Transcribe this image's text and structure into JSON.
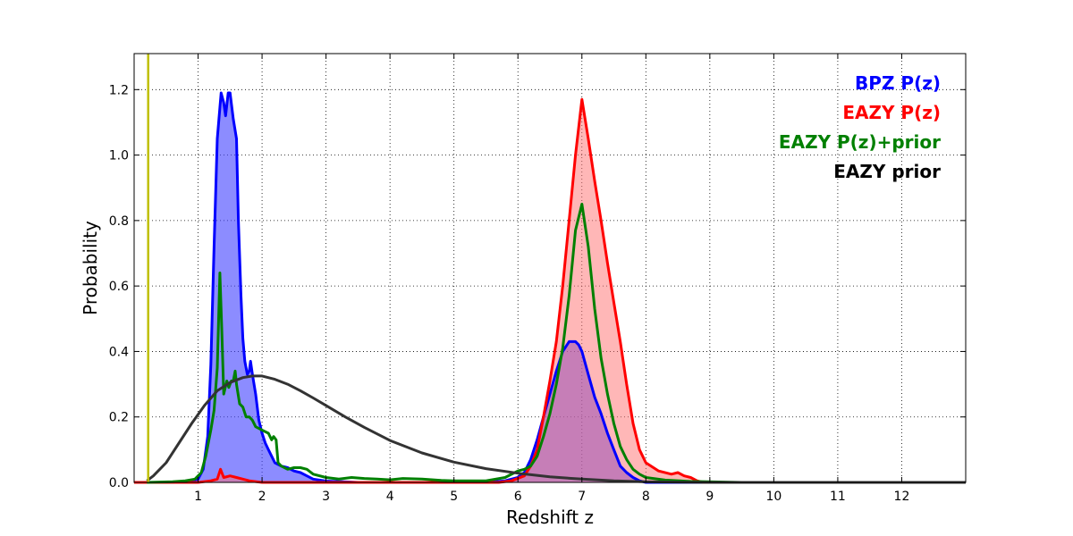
{
  "chart_data": {
    "type": "area",
    "title": "",
    "xlabel": "Redshift z",
    "ylabel": "Probability",
    "xlim": [
      0,
      13
    ],
    "ylim": [
      0,
      1.31
    ],
    "xticks": [
      1,
      2,
      3,
      4,
      5,
      6,
      7,
      8,
      9,
      10,
      11,
      12
    ],
    "yticks": [
      0.0,
      0.2,
      0.4,
      0.6,
      0.8,
      1.0,
      1.2
    ],
    "grid": true,
    "legend_position": "top-right",
    "vline": {
      "x": 0.22,
      "color": "#bfbf00"
    },
    "series": [
      {
        "name": "BPZ P(z)",
        "color": "#0000ff",
        "fill": "#3f3fff",
        "fill_opacity": 0.6,
        "filled": true,
        "points": [
          [
            0,
            0
          ],
          [
            0.8,
            0
          ],
          [
            1.0,
            0.01
          ],
          [
            1.08,
            0.04
          ],
          [
            1.15,
            0.14
          ],
          [
            1.2,
            0.36
          ],
          [
            1.25,
            0.72
          ],
          [
            1.3,
            1.05
          ],
          [
            1.36,
            1.19
          ],
          [
            1.4,
            1.16
          ],
          [
            1.43,
            1.12
          ],
          [
            1.47,
            1.19
          ],
          [
            1.5,
            1.19
          ],
          [
            1.55,
            1.11
          ],
          [
            1.6,
            1.05
          ],
          [
            1.63,
            0.8
          ],
          [
            1.67,
            0.57
          ],
          [
            1.7,
            0.44
          ],
          [
            1.73,
            0.37
          ],
          [
            1.77,
            0.33
          ],
          [
            1.8,
            0.34
          ],
          [
            1.82,
            0.37
          ],
          [
            1.85,
            0.33
          ],
          [
            1.9,
            0.27
          ],
          [
            1.95,
            0.19
          ],
          [
            2.0,
            0.15
          ],
          [
            2.05,
            0.12
          ],
          [
            2.1,
            0.1
          ],
          [
            2.15,
            0.08
          ],
          [
            2.2,
            0.06
          ],
          [
            2.3,
            0.05
          ],
          [
            2.4,
            0.045
          ],
          [
            2.5,
            0.035
          ],
          [
            2.6,
            0.03
          ],
          [
            2.7,
            0.02
          ],
          [
            2.8,
            0.01
          ],
          [
            3.0,
            0.004
          ],
          [
            3.5,
            0
          ],
          [
            5.5,
            0
          ],
          [
            5.8,
            0.005
          ],
          [
            6.0,
            0.015
          ],
          [
            6.1,
            0.03
          ],
          [
            6.2,
            0.07
          ],
          [
            6.3,
            0.13
          ],
          [
            6.4,
            0.2
          ],
          [
            6.5,
            0.27
          ],
          [
            6.6,
            0.34
          ],
          [
            6.7,
            0.4
          ],
          [
            6.8,
            0.43
          ],
          [
            6.9,
            0.43
          ],
          [
            6.95,
            0.42
          ],
          [
            7.0,
            0.4
          ],
          [
            7.1,
            0.33
          ],
          [
            7.2,
            0.26
          ],
          [
            7.3,
            0.21
          ],
          [
            7.4,
            0.15
          ],
          [
            7.5,
            0.1
          ],
          [
            7.6,
            0.05
          ],
          [
            7.7,
            0.03
          ],
          [
            7.8,
            0.015
          ],
          [
            7.9,
            0.005
          ],
          [
            8.0,
            0
          ],
          [
            13,
            0
          ]
        ]
      },
      {
        "name": "EAZY P(z)",
        "color": "#ff0000",
        "fill": "#ff6f6f",
        "fill_opacity": 0.5,
        "filled": true,
        "points": [
          [
            0,
            0
          ],
          [
            1.0,
            0
          ],
          [
            1.2,
            0.005
          ],
          [
            1.3,
            0.01
          ],
          [
            1.35,
            0.04
          ],
          [
            1.4,
            0.015
          ],
          [
            1.5,
            0.02
          ],
          [
            1.6,
            0.015
          ],
          [
            1.7,
            0.01
          ],
          [
            1.8,
            0.005
          ],
          [
            2.0,
            0
          ],
          [
            5.7,
            0
          ],
          [
            5.9,
            0.005
          ],
          [
            6.1,
            0.02
          ],
          [
            6.2,
            0.05
          ],
          [
            6.3,
            0.1
          ],
          [
            6.4,
            0.2
          ],
          [
            6.5,
            0.31
          ],
          [
            6.6,
            0.43
          ],
          [
            6.7,
            0.6
          ],
          [
            6.8,
            0.8
          ],
          [
            6.9,
            1.0
          ],
          [
            7.0,
            1.17
          ],
          [
            7.1,
            1.05
          ],
          [
            7.2,
            0.92
          ],
          [
            7.3,
            0.8
          ],
          [
            7.4,
            0.67
          ],
          [
            7.5,
            0.55
          ],
          [
            7.6,
            0.43
          ],
          [
            7.7,
            0.3
          ],
          [
            7.8,
            0.18
          ],
          [
            7.9,
            0.1
          ],
          [
            8.0,
            0.06
          ],
          [
            8.2,
            0.035
          ],
          [
            8.4,
            0.025
          ],
          [
            8.5,
            0.03
          ],
          [
            8.6,
            0.02
          ],
          [
            8.7,
            0.015
          ],
          [
            8.8,
            0.005
          ],
          [
            8.9,
            0
          ],
          [
            13,
            0
          ]
        ]
      },
      {
        "name": "EAZY P(z)+prior",
        "color": "#008000",
        "filled": false,
        "points": [
          [
            0.2,
            0
          ],
          [
            0.6,
            0.002
          ],
          [
            0.8,
            0.005
          ],
          [
            0.95,
            0.01
          ],
          [
            1.05,
            0.03
          ],
          [
            1.12,
            0.08
          ],
          [
            1.2,
            0.16
          ],
          [
            1.25,
            0.22
          ],
          [
            1.3,
            0.35
          ],
          [
            1.34,
            0.64
          ],
          [
            1.37,
            0.47
          ],
          [
            1.4,
            0.27
          ],
          [
            1.45,
            0.31
          ],
          [
            1.48,
            0.29
          ],
          [
            1.52,
            0.31
          ],
          [
            1.55,
            0.31
          ],
          [
            1.58,
            0.34
          ],
          [
            1.6,
            0.3
          ],
          [
            1.65,
            0.24
          ],
          [
            1.7,
            0.23
          ],
          [
            1.75,
            0.2
          ],
          [
            1.8,
            0.2
          ],
          [
            1.85,
            0.19
          ],
          [
            1.9,
            0.17
          ],
          [
            2.0,
            0.16
          ],
          [
            2.1,
            0.15
          ],
          [
            2.15,
            0.13
          ],
          [
            2.18,
            0.14
          ],
          [
            2.22,
            0.13
          ],
          [
            2.25,
            0.06
          ],
          [
            2.3,
            0.05
          ],
          [
            2.4,
            0.04
          ],
          [
            2.5,
            0.045
          ],
          [
            2.6,
            0.045
          ],
          [
            2.7,
            0.04
          ],
          [
            2.8,
            0.025
          ],
          [
            3.0,
            0.015
          ],
          [
            3.2,
            0.01
          ],
          [
            3.4,
            0.015
          ],
          [
            3.6,
            0.012
          ],
          [
            3.8,
            0.01
          ],
          [
            4.0,
            0.008
          ],
          [
            4.2,
            0.012
          ],
          [
            4.5,
            0.01
          ],
          [
            4.8,
            0.006
          ],
          [
            5.0,
            0.005
          ],
          [
            5.5,
            0.005
          ],
          [
            5.8,
            0.015
          ],
          [
            6.0,
            0.035
          ],
          [
            6.1,
            0.04
          ],
          [
            6.2,
            0.05
          ],
          [
            6.3,
            0.08
          ],
          [
            6.4,
            0.14
          ],
          [
            6.5,
            0.21
          ],
          [
            6.6,
            0.3
          ],
          [
            6.7,
            0.41
          ],
          [
            6.8,
            0.57
          ],
          [
            6.9,
            0.77
          ],
          [
            7.0,
            0.85
          ],
          [
            7.1,
            0.72
          ],
          [
            7.2,
            0.53
          ],
          [
            7.3,
            0.38
          ],
          [
            7.4,
            0.27
          ],
          [
            7.5,
            0.18
          ],
          [
            7.6,
            0.11
          ],
          [
            7.7,
            0.07
          ],
          [
            7.8,
            0.04
          ],
          [
            7.9,
            0.025
          ],
          [
            8.0,
            0.015
          ],
          [
            8.3,
            0.007
          ],
          [
            8.7,
            0.003
          ],
          [
            9.5,
            0
          ],
          [
            13,
            0
          ]
        ]
      },
      {
        "name": "EAZY prior",
        "color": "#333333",
        "filled": false,
        "points": [
          [
            0.2,
            0.005
          ],
          [
            0.3,
            0.02
          ],
          [
            0.5,
            0.06
          ],
          [
            0.7,
            0.12
          ],
          [
            0.9,
            0.18
          ],
          [
            1.1,
            0.235
          ],
          [
            1.3,
            0.28
          ],
          [
            1.5,
            0.305
          ],
          [
            1.7,
            0.32
          ],
          [
            1.85,
            0.325
          ],
          [
            2.0,
            0.325
          ],
          [
            2.2,
            0.315
          ],
          [
            2.4,
            0.3
          ],
          [
            2.6,
            0.28
          ],
          [
            2.8,
            0.258
          ],
          [
            3.0,
            0.235
          ],
          [
            3.3,
            0.2
          ],
          [
            3.6,
            0.168
          ],
          [
            4.0,
            0.128
          ],
          [
            4.5,
            0.09
          ],
          [
            5.0,
            0.062
          ],
          [
            5.5,
            0.042
          ],
          [
            6.0,
            0.028
          ],
          [
            6.5,
            0.017
          ],
          [
            7.0,
            0.01
          ],
          [
            7.5,
            0.005
          ],
          [
            8.0,
            0.002
          ],
          [
            9.0,
            0
          ],
          [
            13,
            0
          ]
        ]
      }
    ]
  }
}
